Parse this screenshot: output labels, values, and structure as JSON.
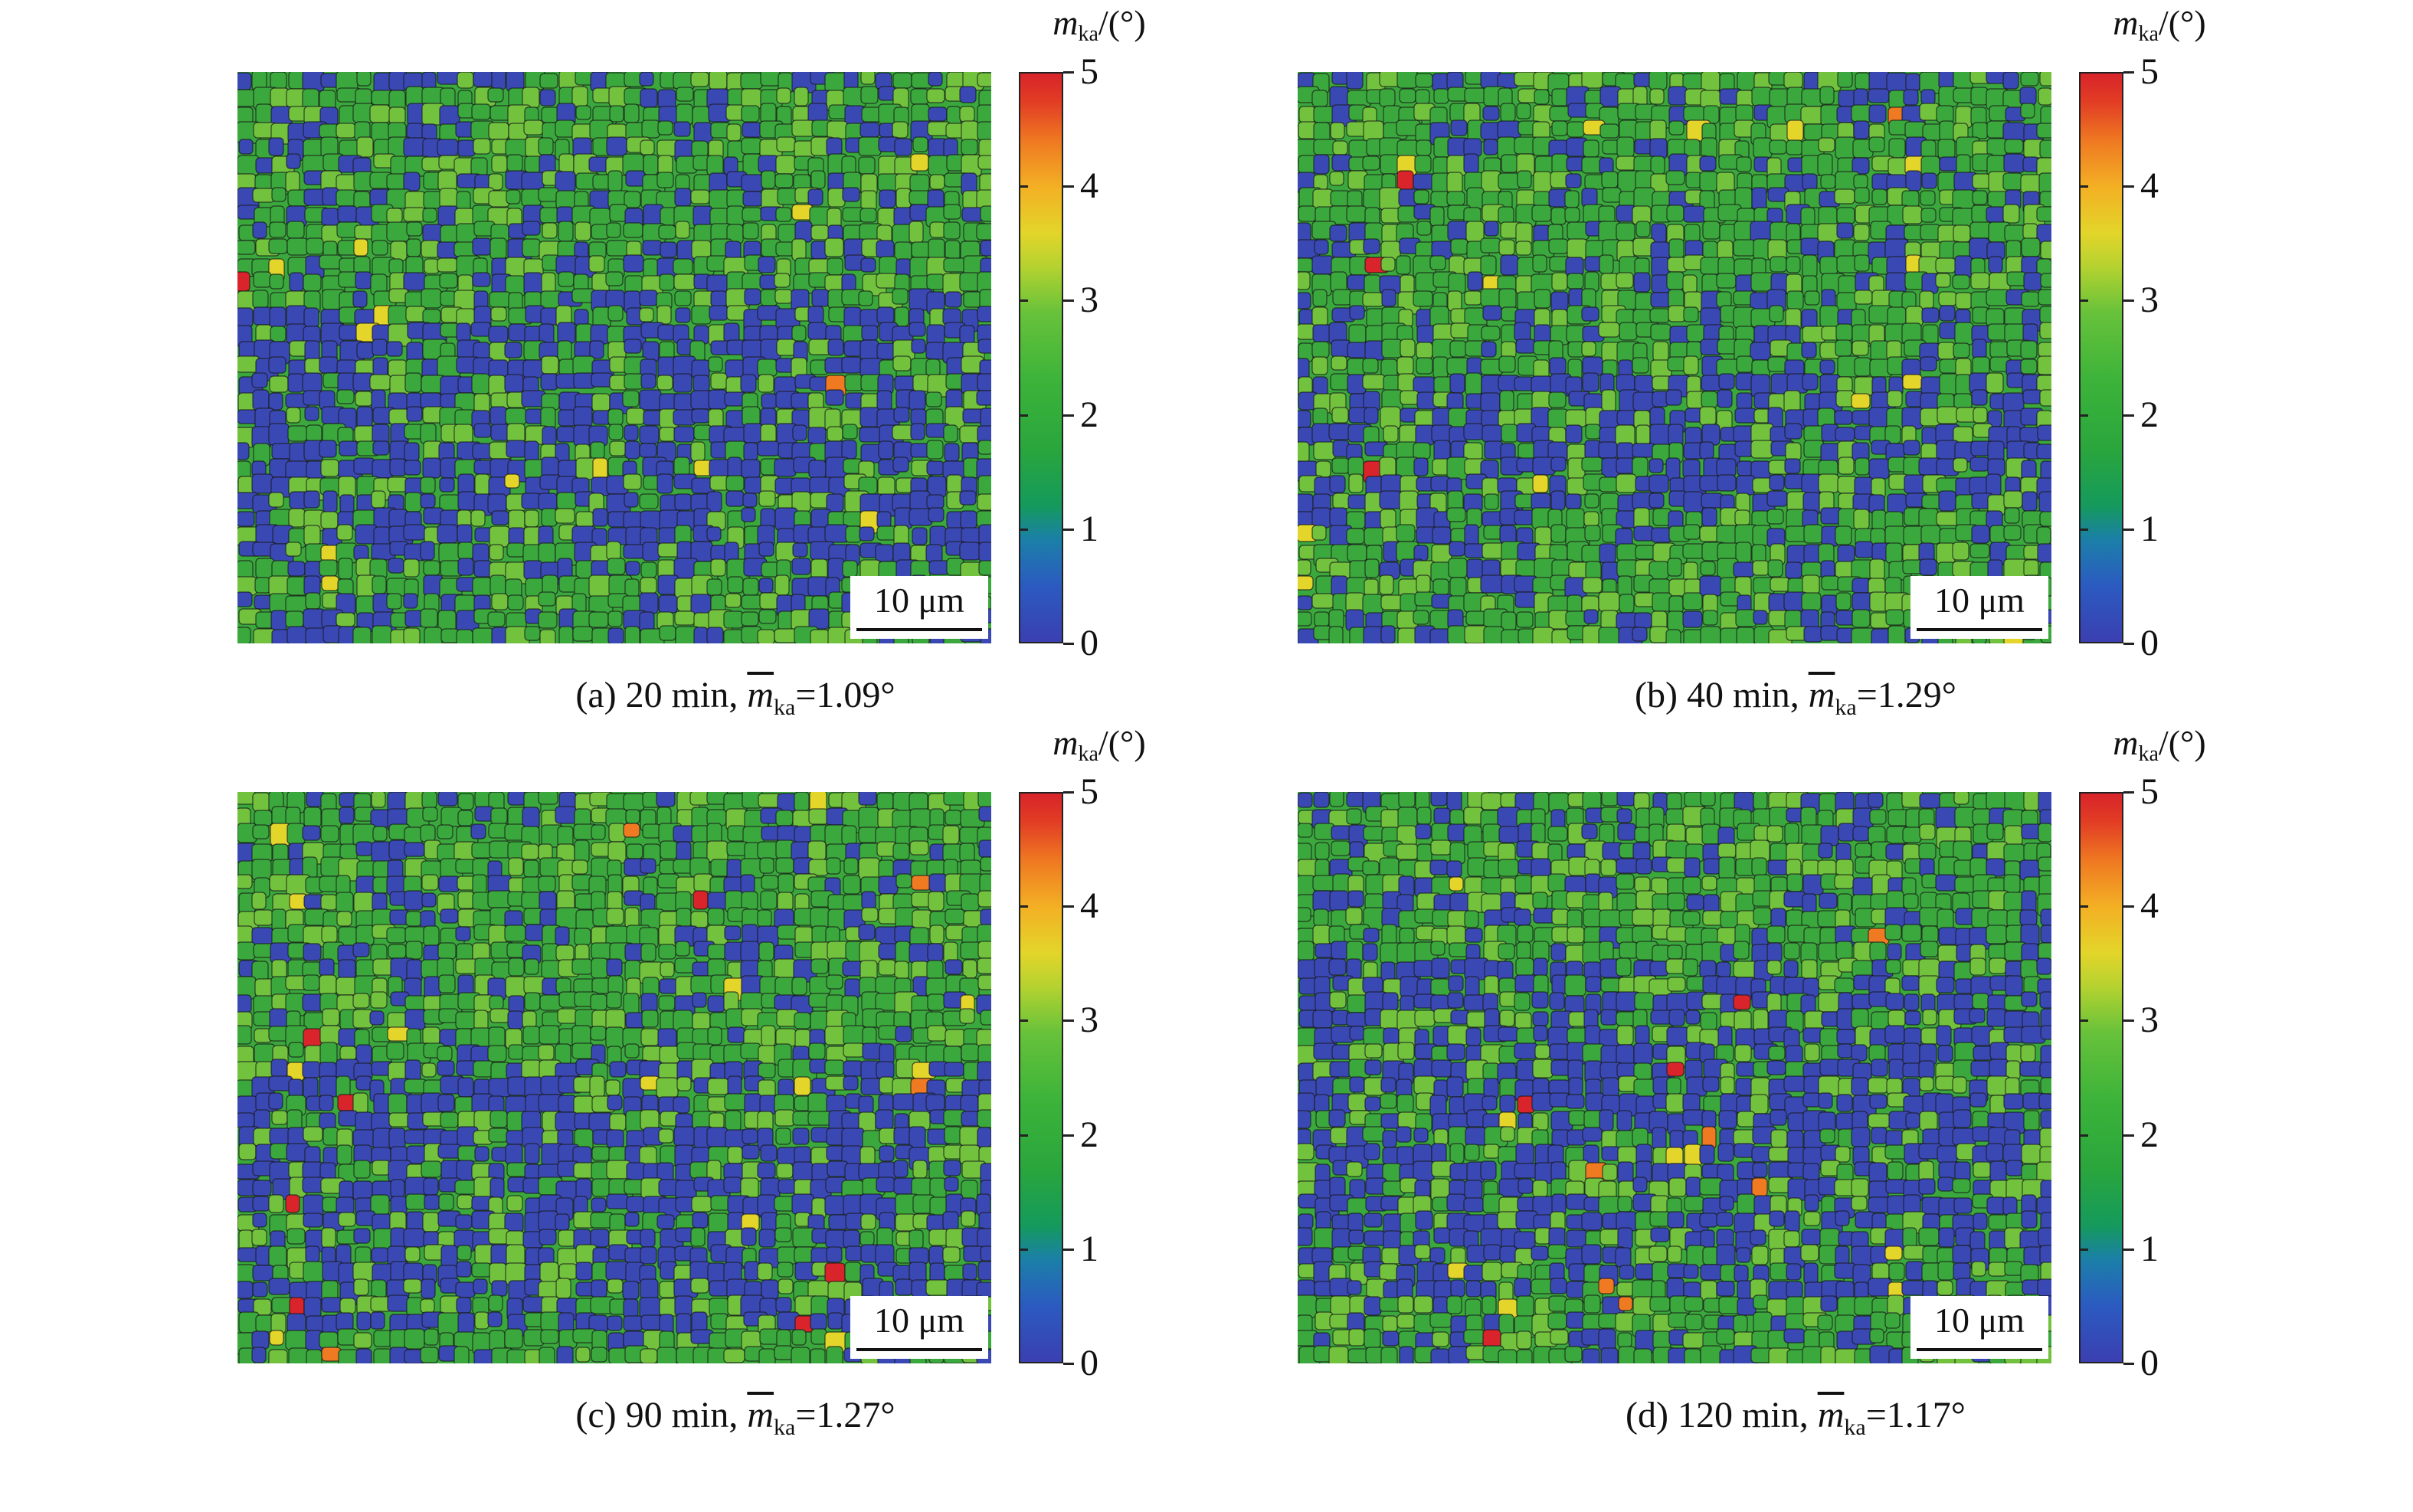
{
  "figure": {
    "panels": [
      {
        "id": "a",
        "caption_prefix": "(a) 20 min, ",
        "caption_var": "m",
        "caption_sub": "ka",
        "caption_value": "=1.09°",
        "scale_bar": "10 μm",
        "colorbar_title_var": "m",
        "colorbar_title_sub": "ka",
        "colorbar_title_unit": "/(°)",
        "colorbar_ticks": [
          "0",
          "1",
          "2",
          "3",
          "4",
          "5"
        ]
      },
      {
        "id": "b",
        "caption_prefix": "(b) 40 min, ",
        "caption_var": "m",
        "caption_sub": "ka",
        "caption_value": "=1.29°",
        "scale_bar": "10 μm",
        "colorbar_title_var": "m",
        "colorbar_title_sub": "ka",
        "colorbar_title_unit": "/(°)",
        "colorbar_ticks": [
          "0",
          "1",
          "2",
          "3",
          "4",
          "5"
        ]
      },
      {
        "id": "c",
        "caption_prefix": "(c) 90 min, ",
        "caption_var": "m",
        "caption_sub": "ka",
        "caption_value": "=1.27°",
        "scale_bar": "10 μm",
        "colorbar_title_var": "m",
        "colorbar_title_sub": "ka",
        "colorbar_title_unit": "/(°)",
        "colorbar_ticks": [
          "0",
          "1",
          "2",
          "3",
          "4",
          "5"
        ]
      },
      {
        "id": "d",
        "caption_prefix": "(d) 120 min, ",
        "caption_var": "m",
        "caption_sub": "ka",
        "caption_value": "=1.17°",
        "scale_bar": "10 μm",
        "colorbar_title_var": "m",
        "colorbar_title_sub": "ka",
        "colorbar_title_unit": "/(°)",
        "colorbar_ticks": [
          "0",
          "1",
          "2",
          "3",
          "4",
          "5"
        ]
      }
    ],
    "colors": {
      "blue": "#3a48b4",
      "green": "#3aa83c",
      "light_green": "#72c23e",
      "yellow": "#e3d52a",
      "orange": "#ef7a22",
      "red": "#d8242a",
      "boundary": "#1a1a1a"
    }
  }
}
